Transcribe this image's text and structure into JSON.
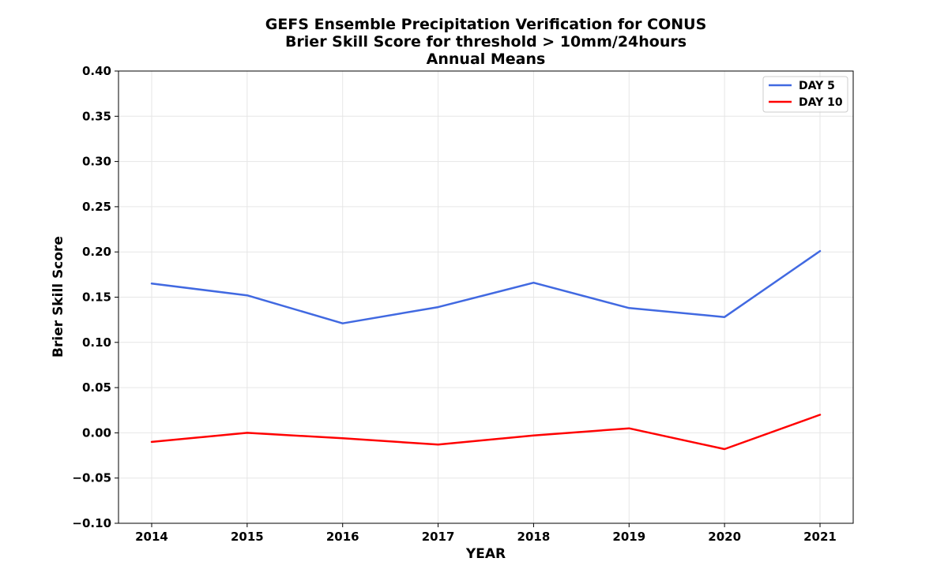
{
  "chart_data": {
    "type": "line",
    "title": [
      "GEFS Ensemble Precipitation Verification for CONUS",
      "Brier Skill Score for threshold > 10mm/24hours",
      "Annual Means"
    ],
    "xlabel": "YEAR",
    "ylabel": "Brier Skill Score",
    "x": [
      "2014",
      "2015",
      "2016",
      "2017",
      "2018",
      "2019",
      "2020",
      "2021"
    ],
    "ylim": [
      -0.1,
      0.4
    ],
    "yticks": [
      "−0.10",
      "−0.05",
      "0.00",
      "0.05",
      "0.10",
      "0.15",
      "0.20",
      "0.25",
      "0.30",
      "0.35",
      "0.40"
    ],
    "grid": true,
    "legend_position": "top-right",
    "series": [
      {
        "name": "DAY 5",
        "color": "#4169e1",
        "values": [
          0.165,
          0.152,
          0.121,
          0.139,
          0.166,
          0.138,
          0.128,
          0.201
        ]
      },
      {
        "name": "DAY 10",
        "color": "#ff0000",
        "values": [
          -0.01,
          0.0,
          -0.006,
          -0.013,
          -0.003,
          0.005,
          -0.018,
          0.02
        ]
      }
    ]
  }
}
